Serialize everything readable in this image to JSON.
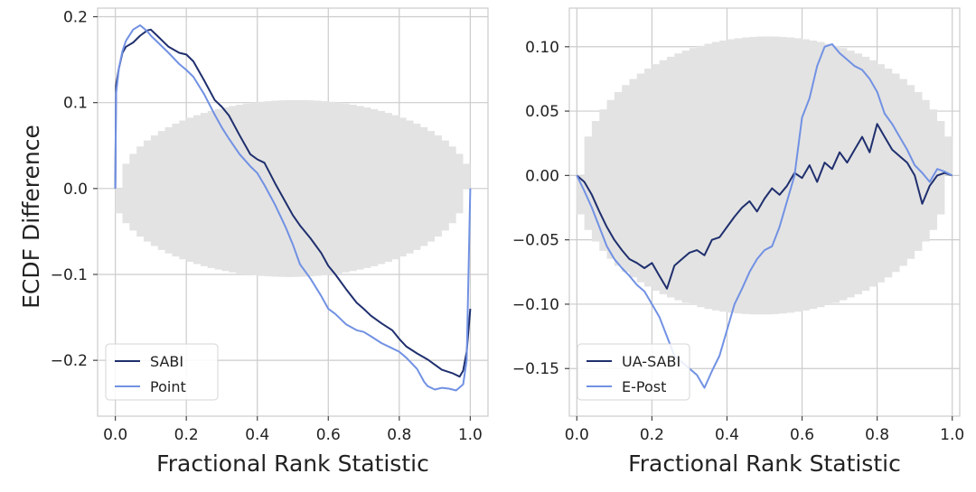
{
  "figure": {
    "ylabel": "ECDF Difference"
  },
  "chart_data": [
    {
      "type": "line",
      "xlabel": "Fractional Rank Statistic",
      "ylabel": "ECDF Difference",
      "xlim": [
        -0.05,
        1.05
      ],
      "ylim": [
        -0.265,
        0.21
      ],
      "xticks": [
        0.0,
        0.2,
        0.4,
        0.6,
        0.8,
        1.0
      ],
      "xtick_labels": [
        "0.0",
        "0.2",
        "0.4",
        "0.6",
        "0.8",
        "1.0"
      ],
      "yticks": [
        -0.2,
        -0.1,
        0.0,
        0.1,
        0.2
      ],
      "ytick_labels": [
        "−0.2",
        "−0.1",
        "0.0",
        "0.1",
        "0.2"
      ],
      "grid": true,
      "legend_position": "lower-left",
      "confidence_band": {
        "color": "#e3e3e3",
        "max_half_width": 0.103
      },
      "series": [
        {
          "name": "SABI",
          "color": "#1f2f6e",
          "x": [
            0.0,
            0.002,
            0.01,
            0.02,
            0.03,
            0.05,
            0.07,
            0.09,
            0.1,
            0.12,
            0.15,
            0.18,
            0.2,
            0.22,
            0.25,
            0.28,
            0.3,
            0.32,
            0.35,
            0.38,
            0.4,
            0.42,
            0.45,
            0.48,
            0.5,
            0.52,
            0.55,
            0.58,
            0.6,
            0.62,
            0.65,
            0.68,
            0.7,
            0.72,
            0.75,
            0.78,
            0.8,
            0.82,
            0.85,
            0.88,
            0.9,
            0.92,
            0.95,
            0.97,
            0.98,
            0.99,
            1.0
          ],
          "y": [
            0.0,
            0.12,
            0.14,
            0.158,
            0.165,
            0.17,
            0.178,
            0.184,
            0.185,
            0.177,
            0.165,
            0.158,
            0.156,
            0.148,
            0.126,
            0.103,
            0.095,
            0.085,
            0.062,
            0.04,
            0.034,
            0.03,
            0.006,
            -0.016,
            -0.031,
            -0.043,
            -0.058,
            -0.075,
            -0.09,
            -0.1,
            -0.117,
            -0.133,
            -0.14,
            -0.148,
            -0.157,
            -0.165,
            -0.175,
            -0.184,
            -0.192,
            -0.199,
            -0.205,
            -0.211,
            -0.215,
            -0.219,
            -0.212,
            -0.19,
            -0.14
          ]
        },
        {
          "name": "Point",
          "color": "#7191e3",
          "x": [
            0.0,
            0.002,
            0.01,
            0.02,
            0.03,
            0.05,
            0.07,
            0.09,
            0.1,
            0.12,
            0.15,
            0.18,
            0.2,
            0.22,
            0.25,
            0.28,
            0.3,
            0.32,
            0.35,
            0.38,
            0.4,
            0.42,
            0.45,
            0.48,
            0.5,
            0.52,
            0.55,
            0.58,
            0.6,
            0.62,
            0.65,
            0.68,
            0.7,
            0.72,
            0.75,
            0.78,
            0.8,
            0.82,
            0.85,
            0.87,
            0.88,
            0.9,
            0.92,
            0.94,
            0.96,
            0.98,
            0.99,
            1.0
          ],
          "y": [
            0.0,
            0.11,
            0.14,
            0.16,
            0.172,
            0.185,
            0.19,
            0.183,
            0.178,
            0.17,
            0.158,
            0.145,
            0.138,
            0.13,
            0.11,
            0.086,
            0.071,
            0.058,
            0.04,
            0.026,
            0.018,
            0.004,
            -0.019,
            -0.045,
            -0.065,
            -0.088,
            -0.105,
            -0.125,
            -0.14,
            -0.146,
            -0.158,
            -0.165,
            -0.167,
            -0.172,
            -0.18,
            -0.186,
            -0.19,
            -0.197,
            -0.21,
            -0.225,
            -0.23,
            -0.234,
            -0.232,
            -0.233,
            -0.235,
            -0.228,
            -0.2,
            0.0
          ]
        }
      ]
    },
    {
      "type": "line",
      "xlabel": "Fractional Rank Statistic",
      "ylabel": "",
      "xlim": [
        -0.02,
        1.02
      ],
      "ylim": [
        -0.187,
        0.13
      ],
      "xticks": [
        0.0,
        0.2,
        0.4,
        0.6,
        0.8,
        1.0
      ],
      "xtick_labels": [
        "0.0",
        "0.2",
        "0.4",
        "0.6",
        "0.8",
        "1.0"
      ],
      "yticks": [
        -0.15,
        -0.1,
        -0.05,
        0.0,
        0.05,
        0.1
      ],
      "ytick_labels": [
        "−0.15",
        "−0.10",
        "−0.05",
        "0.00",
        "0.05",
        "0.10"
      ],
      "grid": true,
      "legend_position": "lower-left",
      "confidence_band": {
        "color": "#e3e3e3",
        "max_half_width": 0.108
      },
      "series": [
        {
          "name": "UA-SABI",
          "color": "#1f2f6e",
          "x": [
            0.0,
            0.02,
            0.04,
            0.06,
            0.08,
            0.1,
            0.12,
            0.14,
            0.16,
            0.18,
            0.2,
            0.22,
            0.24,
            0.26,
            0.28,
            0.3,
            0.32,
            0.34,
            0.36,
            0.38,
            0.4,
            0.42,
            0.44,
            0.46,
            0.48,
            0.5,
            0.52,
            0.54,
            0.56,
            0.58,
            0.6,
            0.62,
            0.64,
            0.66,
            0.68,
            0.7,
            0.72,
            0.74,
            0.76,
            0.78,
            0.8,
            0.82,
            0.84,
            0.86,
            0.88,
            0.9,
            0.92,
            0.94,
            0.96,
            0.98,
            1.0
          ],
          "y": [
            0.0,
            -0.005,
            -0.015,
            -0.028,
            -0.04,
            -0.05,
            -0.058,
            -0.065,
            -0.068,
            -0.072,
            -0.068,
            -0.078,
            -0.088,
            -0.07,
            -0.065,
            -0.06,
            -0.058,
            -0.062,
            -0.05,
            -0.048,
            -0.04,
            -0.032,
            -0.025,
            -0.02,
            -0.028,
            -0.018,
            -0.01,
            -0.015,
            -0.008,
            0.002,
            -0.002,
            0.008,
            -0.005,
            0.01,
            0.005,
            0.018,
            0.01,
            0.02,
            0.03,
            0.018,
            0.04,
            0.03,
            0.02,
            0.015,
            0.01,
            0.0,
            -0.022,
            -0.008,
            0.0,
            0.002,
            0.0
          ]
        },
        {
          "name": "E-Post",
          "color": "#7191e3",
          "x": [
            0.0,
            0.02,
            0.04,
            0.06,
            0.08,
            0.1,
            0.12,
            0.14,
            0.16,
            0.18,
            0.2,
            0.22,
            0.24,
            0.26,
            0.28,
            0.3,
            0.32,
            0.34,
            0.36,
            0.38,
            0.4,
            0.42,
            0.44,
            0.46,
            0.48,
            0.5,
            0.52,
            0.54,
            0.56,
            0.58,
            0.6,
            0.62,
            0.64,
            0.66,
            0.68,
            0.7,
            0.72,
            0.74,
            0.76,
            0.78,
            0.8,
            0.82,
            0.84,
            0.86,
            0.88,
            0.9,
            0.92,
            0.94,
            0.96,
            0.98,
            1.0
          ],
          "y": [
            0.0,
            -0.012,
            -0.025,
            -0.04,
            -0.055,
            -0.065,
            -0.072,
            -0.078,
            -0.085,
            -0.09,
            -0.1,
            -0.11,
            -0.125,
            -0.14,
            -0.145,
            -0.15,
            -0.155,
            -0.165,
            -0.152,
            -0.14,
            -0.12,
            -0.1,
            -0.088,
            -0.075,
            -0.065,
            -0.058,
            -0.055,
            -0.04,
            -0.02,
            0.0,
            0.045,
            0.06,
            0.085,
            0.1,
            0.102,
            0.095,
            0.09,
            0.085,
            0.082,
            0.075,
            0.065,
            0.048,
            0.04,
            0.03,
            0.02,
            0.008,
            0.002,
            -0.005,
            0.005,
            0.003,
            0.0
          ]
        }
      ]
    }
  ]
}
